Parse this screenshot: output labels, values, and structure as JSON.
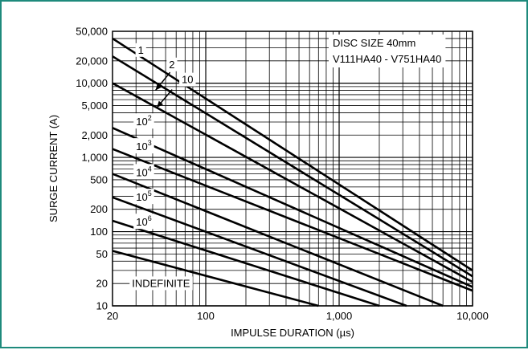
{
  "chart_data": {
    "type": "line",
    "x_scale": "log",
    "y_scale": "log",
    "xlim": [
      20,
      10000
    ],
    "ylim": [
      10,
      50000
    ],
    "xlabel": "IMPULSE DURATION (µs)",
    "ylabel": "SURGE CURRENT (A)",
    "x_ticks": [
      {
        "v": 20,
        "label": "20"
      },
      {
        "v": 100,
        "label": "100"
      },
      {
        "v": 1000,
        "label": "1,000"
      },
      {
        "v": 10000,
        "label": "10,000"
      }
    ],
    "y_ticks": [
      {
        "v": 50000,
        "label": "50,000"
      },
      {
        "v": 20000,
        "label": "20,000"
      },
      {
        "v": 10000,
        "label": "10,000"
      },
      {
        "v": 5000,
        "label": "5,000"
      },
      {
        "v": 2000,
        "label": "2,000"
      },
      {
        "v": 1000,
        "label": "1,000"
      },
      {
        "v": 500,
        "label": "500"
      },
      {
        "v": 200,
        "label": "200"
      },
      {
        "v": 100,
        "label": "100"
      },
      {
        "v": 50,
        "label": "50"
      },
      {
        "v": 20,
        "label": "20"
      },
      {
        "v": 10,
        "label": "10"
      }
    ],
    "legend_box": {
      "line1": "DISC SIZE 40mm",
      "line2": "V111HA40 - V751HA40"
    },
    "series": [
      {
        "name": "1",
        "sup": "",
        "x": [
          20,
          10000
        ],
        "y": [
          40000,
          30
        ]
      },
      {
        "name": "2",
        "sup": "",
        "x": [
          20,
          10000
        ],
        "y": [
          23000,
          25
        ]
      },
      {
        "name": "10",
        "sup": "",
        "x": [
          20,
          10000
        ],
        "y": [
          10000,
          21
        ]
      },
      {
        "name": "10",
        "sup": "2",
        "x": [
          20,
          10000
        ],
        "y": [
          2500,
          18
        ]
      },
      {
        "name": "10",
        "sup": "3",
        "x": [
          20,
          10000
        ],
        "y": [
          1300,
          16
        ]
      },
      {
        "name": "10",
        "sup": "4",
        "x": [
          20,
          6000
        ],
        "y": [
          600,
          10
        ]
      },
      {
        "name": "10",
        "sup": "5",
        "x": [
          20,
          3200
        ],
        "y": [
          290,
          10
        ]
      },
      {
        "name": "10",
        "sup": "6",
        "x": [
          20,
          2000
        ],
        "y": [
          140,
          10
        ]
      },
      {
        "name": "INDEFINITE",
        "sup": "",
        "x": [
          20,
          700
        ],
        "y": [
          55,
          10
        ]
      }
    ],
    "series_labels": [
      {
        "series": 0,
        "x": 31,
        "y": 25000
      },
      {
        "series": 1,
        "x": 53,
        "y": 16000
      },
      {
        "series": 2,
        "x": 66,
        "y": 10000
      },
      {
        "series": 3,
        "x": 30,
        "y": 2700
      },
      {
        "series": 4,
        "x": 30,
        "y": 1250
      },
      {
        "series": 5,
        "x": 30,
        "y": 560
      },
      {
        "series": 6,
        "x": 30,
        "y": 260
      },
      {
        "series": 7,
        "x": 30,
        "y": 120
      },
      {
        "series": 8,
        "x": 28,
        "y": 18
      }
    ],
    "arrows": [
      {
        "from": [
          54,
          14000
        ],
        "to": [
          42,
          8000
        ]
      },
      {
        "from": [
          56,
          8200
        ],
        "to": [
          43,
          4700
        ]
      }
    ]
  }
}
